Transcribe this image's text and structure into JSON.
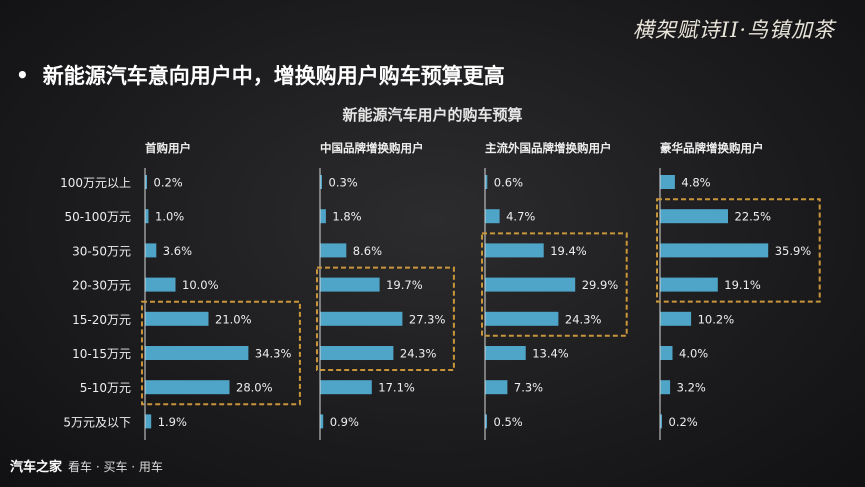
{
  "brand_title": "横架赋诗II·鸟镇加茶",
  "headline": "新能源汽车意向用户中，增换购用户购车预算更高",
  "footer": {
    "logo": "汽车之家",
    "tagline": "看车 · 买车 · 用车"
  },
  "colors": {
    "bar": "#4ea5c8",
    "highlight": "#c8963a",
    "axis": "#d8d8d8",
    "label": "#eeeeee"
  },
  "chart_data": {
    "type": "bar",
    "orientation": "horizontal",
    "title": "新能源汽车用户的购车预算",
    "categories": [
      "100万元以上",
      "50-100万元",
      "30-50万元",
      "20-30万元",
      "15-20万元",
      "10-15万元",
      "5-10万元",
      "5万元及以下"
    ],
    "series": [
      {
        "name": "首购用户",
        "values": [
          0.2,
          1.0,
          3.6,
          10.0,
          21.0,
          34.3,
          28.0,
          1.9
        ],
        "highlight_range": [
          4,
          6
        ]
      },
      {
        "name": "中国品牌增换购用户",
        "values": [
          0.3,
          1.8,
          8.6,
          19.7,
          27.3,
          24.3,
          17.1,
          0.9
        ],
        "highlight_range": [
          3,
          5
        ]
      },
      {
        "name": "主流外国品牌增换购用户",
        "values": [
          0.6,
          4.7,
          19.4,
          29.9,
          24.3,
          13.4,
          7.3,
          0.5
        ],
        "highlight_range": [
          2,
          4
        ]
      },
      {
        "name": "豪华品牌增换购用户",
        "values": [
          4.8,
          22.5,
          35.9,
          19.1,
          10.2,
          4.0,
          3.2,
          0.2
        ],
        "highlight_range": [
          1,
          3
        ]
      }
    ],
    "value_suffix": "%"
  }
}
